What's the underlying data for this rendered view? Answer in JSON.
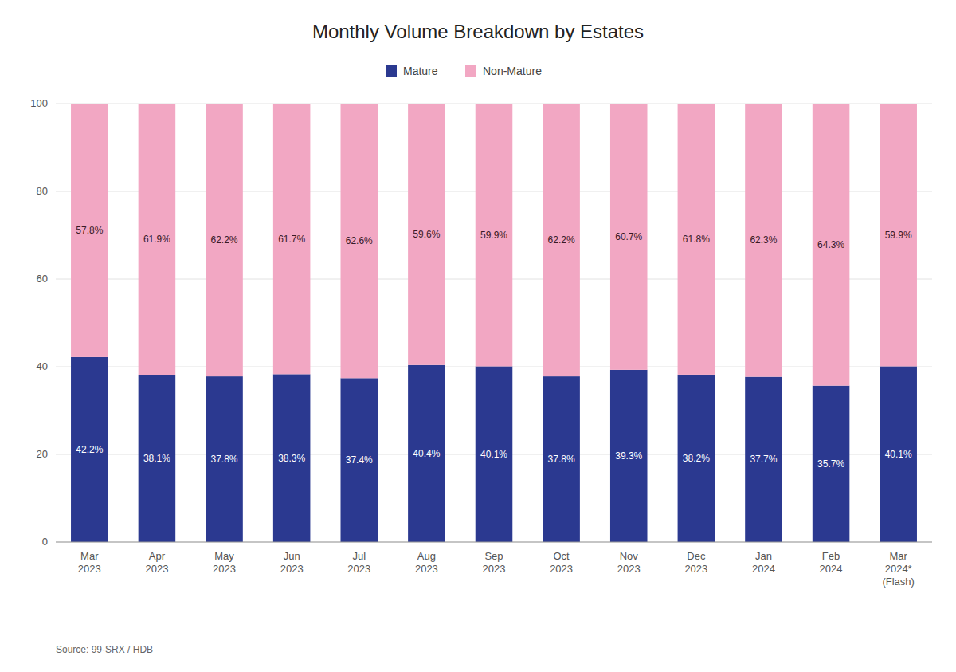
{
  "chart_data": {
    "type": "bar",
    "stacked": true,
    "title": "Monthly Volume Breakdown by Estates",
    "categories": [
      "Mar\n2023",
      "Apr\n2023",
      "May\n2023",
      "Jun\n2023",
      "Jul\n2023",
      "Aug\n2023",
      "Sep\n2023",
      "Oct\n2023",
      "Nov\n2023",
      "Dec\n2023",
      "Jan\n2024",
      "Feb\n2024",
      "Mar\n2024*\n(Flash)"
    ],
    "series": [
      {
        "name": "Mature",
        "color": "#2B3990",
        "values": [
          42.2,
          38.1,
          37.8,
          38.3,
          37.4,
          40.4,
          40.1,
          37.8,
          39.3,
          38.2,
          37.7,
          35.7,
          40.1
        ],
        "value_labels": [
          "42.2%",
          "38.1%",
          "37.8%",
          "38.3%",
          "37.4%",
          "40.4%",
          "40.1%",
          "37.8%",
          "39.3%",
          "38.2%",
          "37.7%",
          "35.7%",
          "40.1%"
        ]
      },
      {
        "name": "Non-Mature",
        "color": "#F2A7C3",
        "values": [
          57.8,
          61.9,
          62.2,
          61.7,
          62.6,
          59.6,
          59.9,
          62.2,
          60.7,
          61.8,
          62.3,
          64.3,
          59.9
        ],
        "value_labels": [
          "57.8%",
          "61.9%",
          "62.2%",
          "61.7%",
          "62.6%",
          "59.6%",
          "59.9%",
          "62.2%",
          "60.7%",
          "61.8%",
          "62.3%",
          "64.3%",
          "59.9%"
        ]
      }
    ],
    "ylim": [
      0,
      100
    ],
    "yticks": [
      0,
      20,
      40,
      60,
      80,
      100
    ],
    "grid": true,
    "legend": "top",
    "data_labels": true,
    "annotations": [
      "Source: 99-SRX / HDB"
    ]
  }
}
